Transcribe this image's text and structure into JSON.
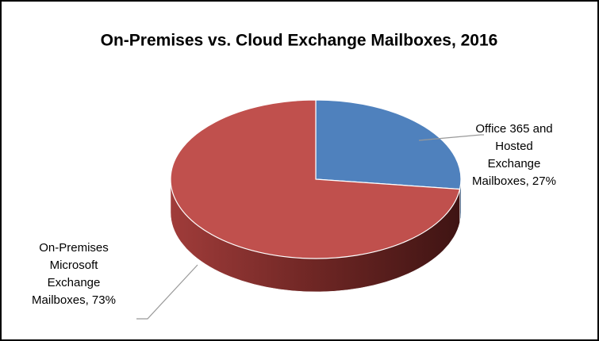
{
  "chart_data": {
    "type": "pie",
    "title": "On-Premises vs. Cloud  Exchange Mailboxes, 2016",
    "values": [
      27,
      73
    ],
    "value_labels": [
      "Office 365 and Hosted Exchange Mailboxes, 27%",
      "On-Premises Microsoft Exchange Mailboxes, 73%"
    ],
    "colors": [
      "#4f81bd",
      "#c0504d"
    ]
  }
}
